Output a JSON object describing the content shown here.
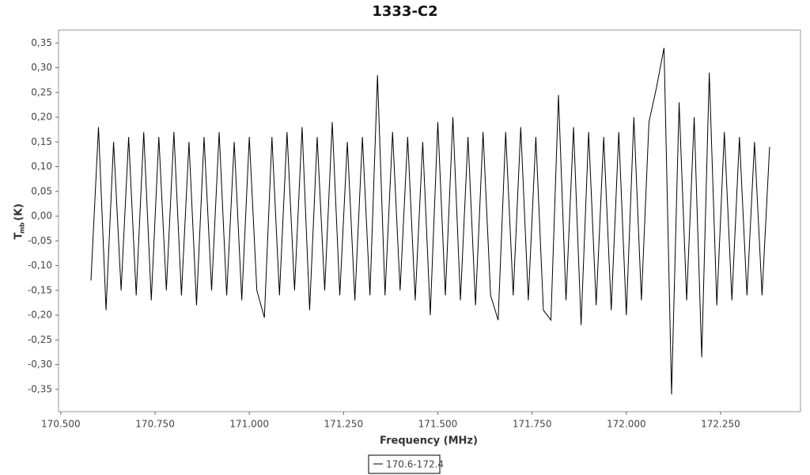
{
  "chart_data": {
    "type": "line",
    "title": "1333-C2",
    "x_label": "Frequency (MHz)",
    "y_label": {
      "main": "T",
      "sub": "mb",
      "unit": "(K)"
    },
    "x": [
      170.58,
      170.6,
      170.62,
      170.64,
      170.66,
      170.68,
      170.7,
      170.72,
      170.74,
      170.76,
      170.78,
      170.8,
      170.82,
      170.84,
      170.86,
      170.88,
      170.9,
      170.92,
      170.94,
      170.96,
      170.98,
      171.0,
      171.02,
      171.04,
      171.06,
      171.08,
      171.1,
      171.12,
      171.14,
      171.16,
      171.18,
      171.2,
      171.22,
      171.24,
      171.26,
      171.28,
      171.3,
      171.32,
      171.34,
      171.36,
      171.38,
      171.4,
      171.42,
      171.44,
      171.46,
      171.48,
      171.5,
      171.52,
      171.54,
      171.56,
      171.58,
      171.6,
      171.62,
      171.64,
      171.66,
      171.68,
      171.7,
      171.72,
      171.74,
      171.76,
      171.78,
      171.8,
      171.82,
      171.84,
      171.86,
      171.88,
      171.9,
      171.92,
      171.94,
      171.96,
      171.98,
      172.0,
      172.02,
      172.04,
      172.06,
      172.08,
      172.1,
      172.12,
      172.14,
      172.16,
      172.18,
      172.2,
      172.22,
      172.24,
      172.26,
      172.28,
      172.3,
      172.32,
      172.34,
      172.36,
      172.38
    ],
    "series": [
      {
        "name": "170.6-172.4",
        "color": "#000000",
        "values": [
          -0.13,
          0.18,
          -0.19,
          0.15,
          -0.15,
          0.16,
          -0.16,
          0.17,
          -0.17,
          0.16,
          -0.15,
          0.17,
          -0.16,
          0.15,
          -0.18,
          0.16,
          -0.15,
          0.17,
          -0.16,
          0.15,
          -0.17,
          0.16,
          -0.15,
          -0.205,
          0.16,
          -0.16,
          0.17,
          -0.15,
          0.18,
          -0.19,
          0.16,
          -0.15,
          0.19,
          -0.16,
          0.15,
          -0.17,
          0.16,
          -0.16,
          0.285,
          -0.16,
          0.17,
          -0.15,
          0.16,
          -0.17,
          0.15,
          -0.2,
          0.19,
          -0.16,
          0.2,
          -0.17,
          0.16,
          -0.18,
          0.17,
          -0.16,
          -0.21,
          0.17,
          -0.16,
          0.18,
          -0.17,
          0.16,
          -0.19,
          -0.21,
          0.245,
          -0.17,
          0.18,
          -0.22,
          0.17,
          -0.18,
          0.16,
          -0.19,
          0.17,
          -0.2,
          0.2,
          -0.17,
          0.19,
          0.26,
          0.34,
          -0.36,
          0.23,
          -0.17,
          0.2,
          -0.285,
          0.29,
          -0.18,
          0.17,
          -0.17,
          0.16,
          -0.16,
          0.15,
          -0.16,
          0.14
        ]
      }
    ],
    "xlim": [
      170.494,
      172.462
    ],
    "ylim": [
      -0.395,
      0.376
    ],
    "xticks": [
      {
        "value": 170.5,
        "label": "170.500"
      },
      {
        "value": 170.75,
        "label": "170.750"
      },
      {
        "value": 171,
        "label": "171.000"
      },
      {
        "value": 171.25,
        "label": "171.250"
      },
      {
        "value": 171.5,
        "label": "171.500"
      },
      {
        "value": 171.75,
        "label": "171.750"
      },
      {
        "value": 172,
        "label": "172.000"
      },
      {
        "value": 172.25,
        "label": "172.250"
      }
    ],
    "yticks": [
      {
        "value": -0.35,
        "label": "-0,35"
      },
      {
        "value": -0.3,
        "label": "-0,30"
      },
      {
        "value": -0.25,
        "label": "-0,25"
      },
      {
        "value": -0.2,
        "label": "-0,20"
      },
      {
        "value": -0.15,
        "label": "-0,15"
      },
      {
        "value": -0.1,
        "label": "-0,10"
      },
      {
        "value": -0.05,
        "label": "-0,05"
      },
      {
        "value": 0,
        "label": "0,00"
      },
      {
        "value": 0.05,
        "label": "0,05"
      },
      {
        "value": 0.1,
        "label": "0,10"
      },
      {
        "value": 0.15,
        "label": "0,15"
      },
      {
        "value": 0.2,
        "label": "0,20"
      },
      {
        "value": 0.25,
        "label": "0,25"
      },
      {
        "value": 0.3,
        "label": "0,30"
      },
      {
        "value": 0.35,
        "label": "0,35"
      }
    ],
    "grid": false
  }
}
